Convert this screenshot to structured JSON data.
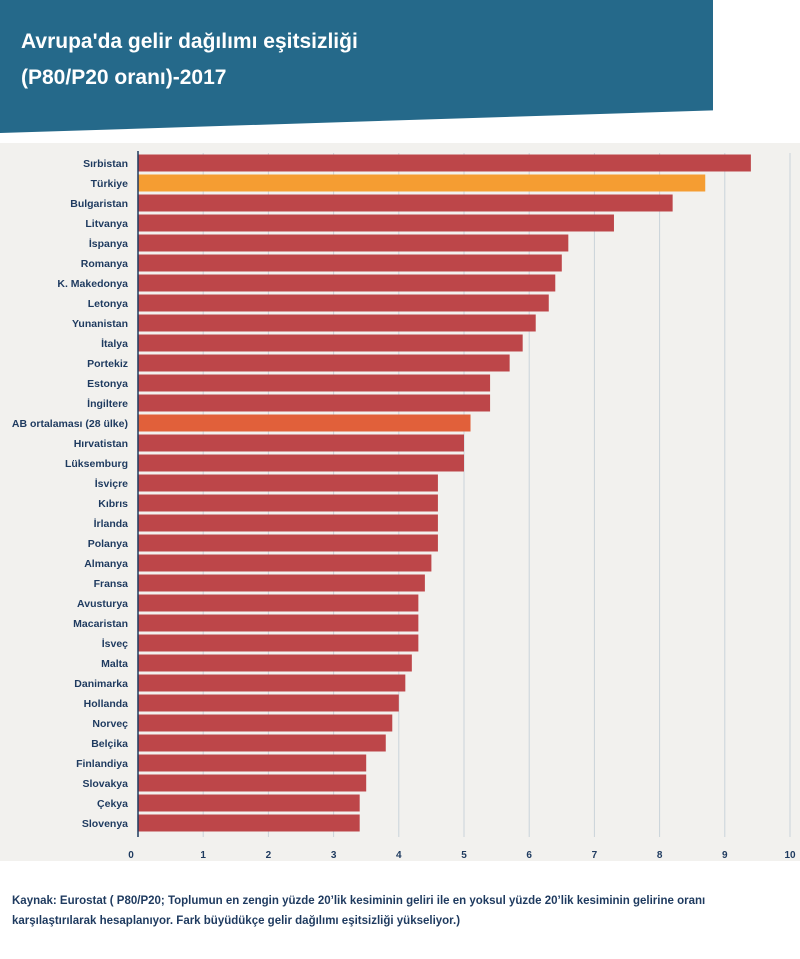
{
  "header": {
    "title_line1": "Avrupa'da gelir dağılımı eşitsizliği",
    "title_line2": "(P80/P20 oranı)-2017"
  },
  "colors": {
    "header_bg": "#25698a",
    "bar_default": "#bd4649",
    "bar_turkiye": "#f59d32",
    "bar_eu_average": "#e1603a",
    "plot_bg": "#f2f1ee",
    "label_text": "#1e3a5f"
  },
  "chart_data": {
    "type": "bar",
    "orientation": "horizontal",
    "title": "Avrupa'da gelir dağılımı eşitsizliği (P80/P20 oranı)-2017",
    "xlabel": "",
    "ylabel": "",
    "xlim": [
      0,
      10
    ],
    "x_ticks": [
      "0",
      "1",
      "2",
      "3",
      "4",
      "5",
      "6",
      "7",
      "8",
      "9",
      "10"
    ],
    "grid": true,
    "categories": [
      "Sırbistan",
      "Türkiye",
      "Bulgaristan",
      "Litvanya",
      "İspanya",
      "Romanya",
      "K. Makedonya",
      "Letonya",
      "Yunanistan",
      "İtalya",
      "Portekiz",
      "Estonya",
      "İngiltere",
      "AB ortalaması (28 ülke)",
      "Hırvatistan",
      "Lüksemburg",
      "İsviçre",
      "Kıbrıs",
      "İrlanda",
      "Polanya",
      "Almanya",
      "Fransa",
      "Avusturya",
      "Macaristan",
      "İsveç",
      "Malta",
      "Danimarka",
      "Hollanda",
      "Norveç",
      "Belçika",
      "Finlandiya",
      "Slovakya",
      "Çekya",
      "Slovenya"
    ],
    "values": [
      9.4,
      8.7,
      8.2,
      7.3,
      6.6,
      6.5,
      6.4,
      6.3,
      6.1,
      5.9,
      5.7,
      5.4,
      5.4,
      5.1,
      5.0,
      5.0,
      4.6,
      4.6,
      4.6,
      4.6,
      4.5,
      4.4,
      4.3,
      4.3,
      4.3,
      4.2,
      4.1,
      4.0,
      3.9,
      3.8,
      3.5,
      3.5,
      3.4,
      3.4
    ],
    "highlights": {
      "Türkiye": "#f59d32",
      "AB ortalaması (28 ülke)": "#e1603a"
    }
  },
  "source_note": "Kaynak: Eurostat ( P80/P20; Toplumun en zengin yüzde 20’lik kesiminin geliri ile en yoksul yüzde 20’lik kesiminin gelirine oranı karşılaştırılarak hesaplanıyor. Fark büyüdükçe gelir dağılımı eşitsizliği yükseliyor.)"
}
